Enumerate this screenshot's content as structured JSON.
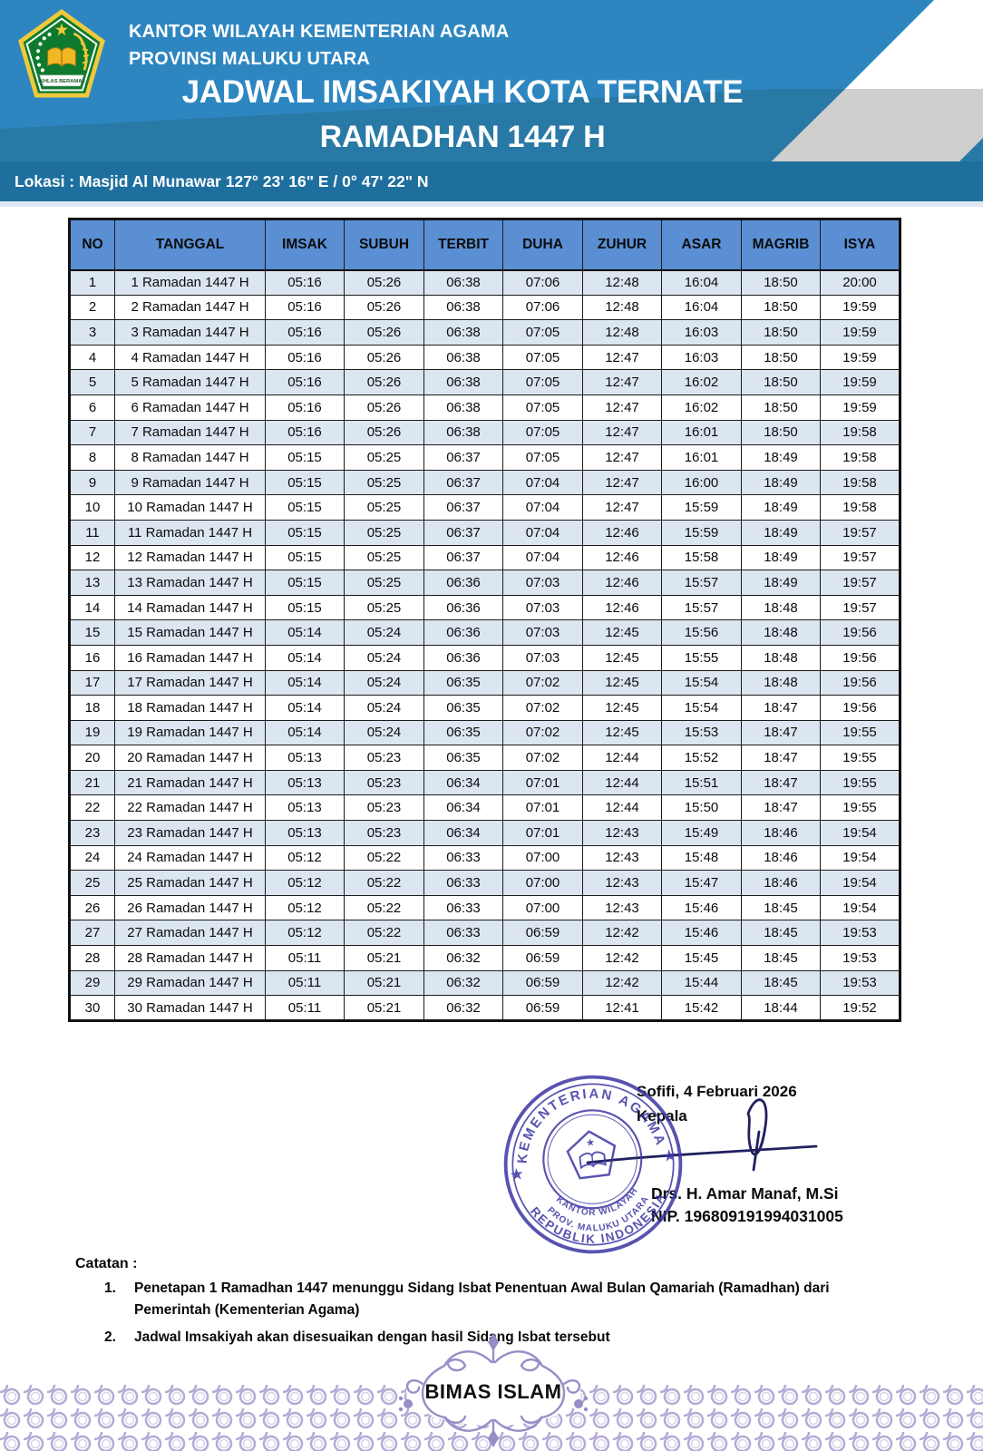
{
  "colors": {
    "header_blue_top": "#2E86C1",
    "header_blue_mid": "#2979A6",
    "location_bar_blue": "#1F6F9E",
    "table_header_blue": "#5B8FD4",
    "row_stripe_blue": "#DCE6F1",
    "table_border": "#1A1A1A",
    "stamp_ink": "#3C36A2",
    "signature_ink": "#20205F",
    "footer_lavender": "#B6AAD6",
    "footer_lavender_light": "#D9D2EA",
    "decor_gray": "#CFCFCD",
    "logo_green": "#0E7A2E",
    "logo_gold": "#F0C93C"
  },
  "header": {
    "org_line1": "KANTOR WILAYAH KEMENTERIAN AGAMA",
    "org_line2": "PROVINSI MALUKU UTARA",
    "title_line1": "JADWAL IMSAKIYAH KOTA TERNATE",
    "title_line2": "RAMADHAN 1447 H",
    "location": "Lokasi : Masjid Al Munawar 127° 23' 16\" E / 0° 47' 22\" N",
    "logo_motto": "IKHLAS BERAMAL"
  },
  "table": {
    "columns": [
      "NO",
      "TANGGAL",
      "IMSAK",
      "SUBUH",
      "TERBIT",
      "DUHA",
      "ZUHUR",
      "ASAR",
      "MAGRIB",
      "ISYA"
    ],
    "rows": [
      [
        "1",
        "1 Ramadan 1447 H",
        "05:16",
        "05:26",
        "06:38",
        "07:06",
        "12:48",
        "16:04",
        "18:50",
        "20:00"
      ],
      [
        "2",
        "2 Ramadan 1447 H",
        "05:16",
        "05:26",
        "06:38",
        "07:06",
        "12:48",
        "16:04",
        "18:50",
        "19:59"
      ],
      [
        "3",
        "3 Ramadan 1447 H",
        "05:16",
        "05:26",
        "06:38",
        "07:05",
        "12:48",
        "16:03",
        "18:50",
        "19:59"
      ],
      [
        "4",
        "4 Ramadan 1447 H",
        "05:16",
        "05:26",
        "06:38",
        "07:05",
        "12:47",
        "16:03",
        "18:50",
        "19:59"
      ],
      [
        "5",
        "5 Ramadan 1447 H",
        "05:16",
        "05:26",
        "06:38",
        "07:05",
        "12:47",
        "16:02",
        "18:50",
        "19:59"
      ],
      [
        "6",
        "6 Ramadan 1447 H",
        "05:16",
        "05:26",
        "06:38",
        "07:05",
        "12:47",
        "16:02",
        "18:50",
        "19:59"
      ],
      [
        "7",
        "7 Ramadan 1447 H",
        "05:16",
        "05:26",
        "06:38",
        "07:05",
        "12:47",
        "16:01",
        "18:50",
        "19:58"
      ],
      [
        "8",
        "8 Ramadan 1447 H",
        "05:15",
        "05:25",
        "06:37",
        "07:05",
        "12:47",
        "16:01",
        "18:49",
        "19:58"
      ],
      [
        "9",
        "9 Ramadan 1447 H",
        "05:15",
        "05:25",
        "06:37",
        "07:04",
        "12:47",
        "16:00",
        "18:49",
        "19:58"
      ],
      [
        "10",
        "10 Ramadan 1447 H",
        "05:15",
        "05:25",
        "06:37",
        "07:04",
        "12:47",
        "15:59",
        "18:49",
        "19:58"
      ],
      [
        "11",
        "11 Ramadan 1447 H",
        "05:15",
        "05:25",
        "06:37",
        "07:04",
        "12:46",
        "15:59",
        "18:49",
        "19:57"
      ],
      [
        "12",
        "12 Ramadan 1447 H",
        "05:15",
        "05:25",
        "06:37",
        "07:04",
        "12:46",
        "15:58",
        "18:49",
        "19:57"
      ],
      [
        "13",
        "13 Ramadan 1447 H",
        "05:15",
        "05:25",
        "06:36",
        "07:03",
        "12:46",
        "15:57",
        "18:49",
        "19:57"
      ],
      [
        "14",
        "14 Ramadan 1447 H",
        "05:15",
        "05:25",
        "06:36",
        "07:03",
        "12:46",
        "15:57",
        "18:48",
        "19:57"
      ],
      [
        "15",
        "15 Ramadan 1447 H",
        "05:14",
        "05:24",
        "06:36",
        "07:03",
        "12:45",
        "15:56",
        "18:48",
        "19:56"
      ],
      [
        "16",
        "16 Ramadan 1447 H",
        "05:14",
        "05:24",
        "06:36",
        "07:03",
        "12:45",
        "15:55",
        "18:48",
        "19:56"
      ],
      [
        "17",
        "17 Ramadan 1447 H",
        "05:14",
        "05:24",
        "06:35",
        "07:02",
        "12:45",
        "15:54",
        "18:48",
        "19:56"
      ],
      [
        "18",
        "18 Ramadan 1447 H",
        "05:14",
        "05:24",
        "06:35",
        "07:02",
        "12:45",
        "15:54",
        "18:47",
        "19:56"
      ],
      [
        "19",
        "19 Ramadan 1447 H",
        "05:14",
        "05:24",
        "06:35",
        "07:02",
        "12:45",
        "15:53",
        "18:47",
        "19:55"
      ],
      [
        "20",
        "20 Ramadan 1447 H",
        "05:13",
        "05:23",
        "06:35",
        "07:02",
        "12:44",
        "15:52",
        "18:47",
        "19:55"
      ],
      [
        "21",
        "21 Ramadan 1447 H",
        "05:13",
        "05:23",
        "06:34",
        "07:01",
        "12:44",
        "15:51",
        "18:47",
        "19:55"
      ],
      [
        "22",
        "22 Ramadan 1447 H",
        "05:13",
        "05:23",
        "06:34",
        "07:01",
        "12:44",
        "15:50",
        "18:47",
        "19:55"
      ],
      [
        "23",
        "23 Ramadan 1447 H",
        "05:13",
        "05:23",
        "06:34",
        "07:01",
        "12:43",
        "15:49",
        "18:46",
        "19:54"
      ],
      [
        "24",
        "24 Ramadan 1447 H",
        "05:12",
        "05:22",
        "06:33",
        "07:00",
        "12:43",
        "15:48",
        "18:46",
        "19:54"
      ],
      [
        "25",
        "25 Ramadan 1447 H",
        "05:12",
        "05:22",
        "06:33",
        "07:00",
        "12:43",
        "15:47",
        "18:46",
        "19:54"
      ],
      [
        "26",
        "26 Ramadan 1447 H",
        "05:12",
        "05:22",
        "06:33",
        "07:00",
        "12:43",
        "15:46",
        "18:45",
        "19:54"
      ],
      [
        "27",
        "27 Ramadan 1447 H",
        "05:12",
        "05:22",
        "06:33",
        "06:59",
        "12:42",
        "15:46",
        "18:45",
        "19:53"
      ],
      [
        "28",
        "28 Ramadan 1447 H",
        "05:11",
        "05:21",
        "06:32",
        "06:59",
        "12:42",
        "15:45",
        "18:45",
        "19:53"
      ],
      [
        "29",
        "29 Ramadan 1447 H",
        "05:11",
        "05:21",
        "06:32",
        "06:59",
        "12:42",
        "15:44",
        "18:45",
        "19:53"
      ],
      [
        "30",
        "30 Ramadan 1447 H",
        "05:11",
        "05:21",
        "06:32",
        "06:59",
        "12:41",
        "15:42",
        "18:44",
        "19:52"
      ]
    ]
  },
  "signature": {
    "place_date": "Sofifi, 4 Februari 2026",
    "role": "Kepala",
    "name": "Drs. H. Amar Manaf, M.Si",
    "nip": "NIP. 196809191994031005"
  },
  "stamp": {
    "ring_top": "KEMENTERIAN AGAMA",
    "ring_bottom": "REPUBLIK INDONESIA",
    "center_line1": "KANTOR WILAYAH",
    "center_line2": "PROV. MALUKU UTARA",
    "star_left": "★",
    "star_right": "★",
    "pentagon_star": "★"
  },
  "notes": {
    "heading": "Catatan :",
    "items": [
      {
        "num": "1.",
        "text": "Penetapan 1 Ramadhan 1447 menunggu Sidang Isbat Penentuan Awal Bulan Qamariah (Ramadhan) dari Pemerintah (Kementerian Agama)"
      },
      {
        "num": "2.",
        "text": "Jadwal Imsakiyah akan disesuaikan dengan hasil Sidang Isbat tersebut"
      }
    ]
  },
  "footer": {
    "badge": "BIMAS ISLAM"
  }
}
